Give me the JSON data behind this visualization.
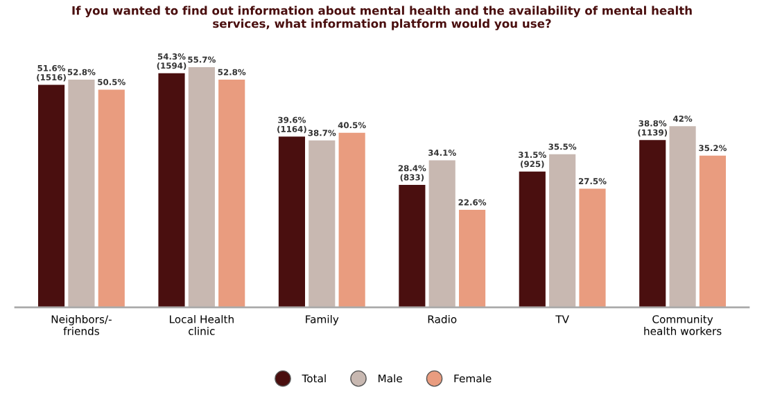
{
  "chart_data": {
    "type": "bar",
    "title": "If you wanted to find out information about mental health and the availability of mental health\nservices, what information platform would you use?",
    "categories": [
      "Neighbors/-\nfriends",
      "Local Health\nclinic",
      "Family",
      "Radio",
      "TV",
      "Community\nhealth workers"
    ],
    "series": [
      {
        "name": "Total",
        "color": "#4a0f0f",
        "values": [
          51.6,
          54.3,
          39.6,
          28.4,
          31.5,
          38.8
        ],
        "value_labels": [
          "51.6%\n(1516)",
          "54.3%\n(1594)",
          "39.6%\n(1164)",
          "28.4%\n(833)",
          "31.5%\n(925)",
          "38.8%\n(1139)"
        ]
      },
      {
        "name": "Male",
        "color": "#c8b8b1",
        "values": [
          52.8,
          55.7,
          38.7,
          34.1,
          35.5,
          42
        ],
        "value_labels": [
          "52.8%",
          "55.7%",
          "38.7%",
          "34.1%",
          "35.5%",
          "42%"
        ]
      },
      {
        "name": "Female",
        "color": "#e99c7f",
        "values": [
          50.5,
          52.8,
          40.5,
          22.6,
          27.5,
          35.2
        ],
        "value_labels": [
          "50.5%",
          "52.8%",
          "40.5%",
          "22.6%",
          "27.5%",
          "35.2%"
        ]
      }
    ],
    "legend": "bottom",
    "grid": false
  }
}
